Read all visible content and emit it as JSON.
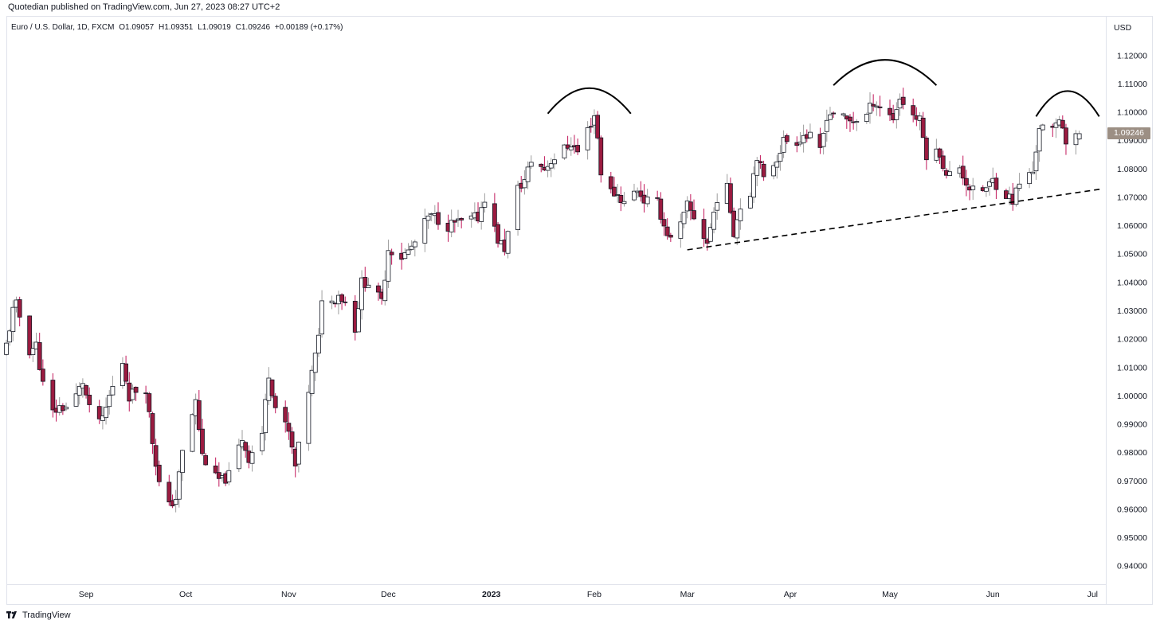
{
  "header": {
    "publisher_line": "Quotedian published on TradingView.com, Jun 27, 2023 08:27 UTC+2"
  },
  "symbol_bar": {
    "name": "Euro / U.S. Dollar, 1D, FXCM",
    "open": "O1.09057",
    "high": "H1.09351",
    "low": "L1.09019",
    "close": "C1.09246",
    "change": "+0.00189 (+0.17%)"
  },
  "axis": {
    "currency": "USD",
    "last_price_label": "1.09246"
  },
  "footer": {
    "brand": "TradingView"
  },
  "colors": {
    "up_body": "#ffffff",
    "up_border": "#131722",
    "down_body": "#9b1b40",
    "down_border": "#131722",
    "up_wick": "#9e9e9e",
    "down_wick": "#c2185b",
    "last_price_tag": "#9c8f84",
    "annotation": "#000000"
  },
  "chart_data": {
    "type": "candlestick",
    "symbol": "EURUSD",
    "interval": "1D",
    "x_range": [
      "2022-08-08",
      "2023-07-05"
    ],
    "ylim": [
      0.935,
      1.125
    ],
    "y_ticks": [
      "1.12000",
      "1.11000",
      "1.10000",
      "1.09000",
      "1.08000",
      "1.07000",
      "1.06000",
      "1.05000",
      "1.04000",
      "1.03000",
      "1.02000",
      "1.01000",
      "1.00000",
      "0.99000",
      "0.98000",
      "0.97000",
      "0.96000",
      "0.95000",
      "0.94000"
    ],
    "x_ticks": [
      {
        "date": "2022-09-01",
        "label": "Sep"
      },
      {
        "date": "2022-10-01",
        "label": "Oct"
      },
      {
        "date": "2022-11-01",
        "label": "Nov"
      },
      {
        "date": "2022-12-01",
        "label": "Dec"
      },
      {
        "date": "2023-01-01",
        "label": "2023",
        "bold": true
      },
      {
        "date": "2023-02-01",
        "label": "Feb"
      },
      {
        "date": "2023-03-01",
        "label": "Mar"
      },
      {
        "date": "2023-04-01",
        "label": "Apr"
      },
      {
        "date": "2023-05-01",
        "label": "May"
      },
      {
        "date": "2023-06-01",
        "label": "Jun"
      },
      {
        "date": "2023-07-01",
        "label": "Jul"
      }
    ],
    "close_path": [
      [
        "2022-08-08",
        1.018
      ],
      [
        "2022-08-10",
        1.03
      ],
      [
        "2022-08-11",
        1.032
      ],
      [
        "2022-08-15",
        1.016
      ],
      [
        "2022-08-17",
        1.018
      ],
      [
        "2022-08-19",
        1.004
      ],
      [
        "2022-08-22",
        0.994
      ],
      [
        "2022-08-24",
        0.996
      ],
      [
        "2022-08-26",
        0.996
      ],
      [
        "2022-08-29",
        1.0
      ],
      [
        "2022-08-31",
        1.005
      ],
      [
        "2022-09-02",
        0.995
      ],
      [
        "2022-09-06",
        0.991
      ],
      [
        "2022-09-08",
        1.0
      ],
      [
        "2022-09-12",
        1.012
      ],
      [
        "2022-09-14",
        1.0
      ],
      [
        "2022-09-16",
        1.002
      ],
      [
        "2022-09-19",
        1.003
      ],
      [
        "2022-09-21",
        0.984
      ],
      [
        "2022-09-23",
        0.969
      ],
      [
        "2022-09-26",
        0.961
      ],
      [
        "2022-09-28",
        0.964
      ],
      [
        "2022-09-30",
        0.98
      ],
      [
        "2022-10-04",
        0.998
      ],
      [
        "2022-10-06",
        0.979
      ],
      [
        "2022-10-10",
        0.971
      ],
      [
        "2022-10-12",
        0.97
      ],
      [
        "2022-10-14",
        0.972
      ],
      [
        "2022-10-18",
        0.985
      ],
      [
        "2022-10-20",
        0.978
      ],
      [
        "2022-10-24",
        0.987
      ],
      [
        "2022-10-26",
        1.008
      ],
      [
        "2022-10-28",
        0.996
      ],
      [
        "2022-11-01",
        0.987
      ],
      [
        "2022-11-03",
        0.975
      ],
      [
        "2022-11-07",
        1.002
      ],
      [
        "2022-11-10",
        1.02
      ],
      [
        "2022-11-11",
        1.035
      ],
      [
        "2022-11-14",
        1.033
      ],
      [
        "2022-11-16",
        1.036
      ],
      [
        "2022-11-18",
        1.033
      ],
      [
        "2022-11-21",
        1.024
      ],
      [
        "2022-11-23",
        1.04
      ],
      [
        "2022-11-25",
        1.04
      ],
      [
        "2022-11-29",
        1.033
      ],
      [
        "2022-12-01",
        1.052
      ],
      [
        "2022-12-05",
        1.049
      ],
      [
        "2022-12-07",
        1.051
      ],
      [
        "2022-12-09",
        1.054
      ],
      [
        "2022-12-13",
        1.063
      ],
      [
        "2022-12-15",
        1.063
      ],
      [
        "2022-12-19",
        1.06
      ],
      [
        "2022-12-21",
        1.061
      ],
      [
        "2022-12-23",
        1.061
      ],
      [
        "2022-12-28",
        1.063
      ],
      [
        "2022-12-30",
        1.07
      ],
      [
        "2023-01-03",
        1.055
      ],
      [
        "2023-01-05",
        1.052
      ],
      [
        "2023-01-09",
        1.073
      ],
      [
        "2023-01-11",
        1.076
      ],
      [
        "2023-01-13",
        1.083
      ],
      [
        "2023-01-17",
        1.08
      ],
      [
        "2023-01-19",
        1.083
      ],
      [
        "2023-01-23",
        1.087
      ],
      [
        "2023-01-25",
        1.089
      ],
      [
        "2023-01-27",
        1.086
      ],
      [
        "2023-02-01",
        1.099
      ],
      [
        "2023-02-02",
        1.091
      ],
      [
        "2023-02-03",
        1.079
      ],
      [
        "2023-02-06",
        1.072
      ],
      [
        "2023-02-08",
        1.071
      ],
      [
        "2023-02-10",
        1.068
      ],
      [
        "2023-02-14",
        1.073
      ],
      [
        "2023-02-16",
        1.069
      ],
      [
        "2023-02-20",
        1.068
      ],
      [
        "2023-02-22",
        1.06
      ],
      [
        "2023-02-24",
        1.055
      ],
      [
        "2023-02-27",
        1.06
      ],
      [
        "2023-03-01",
        1.067
      ],
      [
        "2023-03-03",
        1.063
      ],
      [
        "2023-03-07",
        1.054
      ],
      [
        "2023-03-10",
        1.07
      ],
      [
        "2023-03-13",
        1.073
      ],
      [
        "2023-03-15",
        1.058
      ],
      [
        "2023-03-17",
        1.067
      ],
      [
        "2023-03-20",
        1.072
      ],
      [
        "2023-03-22",
        1.085
      ],
      [
        "2023-03-24",
        1.076
      ],
      [
        "2023-03-28",
        1.084
      ],
      [
        "2023-03-30",
        1.09
      ],
      [
        "2023-04-03",
        1.09
      ],
      [
        "2023-04-05",
        1.092
      ],
      [
        "2023-04-07",
        1.091
      ],
      [
        "2023-04-10",
        1.086
      ],
      [
        "2023-04-12",
        1.099
      ],
      [
        "2023-04-14",
        1.1
      ],
      [
        "2023-04-18",
        1.097
      ],
      [
        "2023-04-20",
        1.097
      ],
      [
        "2023-04-24",
        1.099
      ],
      [
        "2023-04-26",
        1.104
      ],
      [
        "2023-04-28",
        1.102
      ],
      [
        "2023-05-02",
        1.098
      ],
      [
        "2023-05-04",
        1.105
      ],
      [
        "2023-05-08",
        1.099
      ],
      [
        "2023-05-10",
        1.097
      ],
      [
        "2023-05-12",
        1.085
      ],
      [
        "2023-05-16",
        1.086
      ],
      [
        "2023-05-18",
        1.077
      ],
      [
        "2023-05-22",
        1.081
      ],
      [
        "2023-05-24",
        1.075
      ],
      [
        "2023-05-26",
        1.072
      ],
      [
        "2023-05-30",
        1.073
      ],
      [
        "2023-06-01",
        1.076
      ],
      [
        "2023-06-05",
        1.071
      ],
      [
        "2023-06-07",
        1.069
      ],
      [
        "2023-06-09",
        1.075
      ],
      [
        "2023-06-13",
        1.079
      ],
      [
        "2023-06-15",
        1.095
      ],
      [
        "2023-06-19",
        1.093
      ],
      [
        "2023-06-21",
        1.098
      ],
      [
        "2023-06-22",
        1.096
      ],
      [
        "2023-06-23",
        1.089
      ],
      [
        "2023-06-26",
        1.091
      ],
      [
        "2023-06-27",
        1.09246
      ]
    ],
    "annotations": [
      {
        "type": "arc",
        "label": "",
        "from": "2023-01-18",
        "to": "2023-02-12",
        "peak": 1.1085
      },
      {
        "type": "arc",
        "label": "",
        "from": "2023-04-14",
        "to": "2023-05-15",
        "peak": 1.1185
      },
      {
        "type": "arc",
        "label": "",
        "from": "2023-06-14",
        "to": "2023-07-03",
        "peak": 1.1075
      },
      {
        "type": "dashed_trendline",
        "label": "",
        "from": [
          "2023-03-01",
          1.0515
        ],
        "to": [
          "2023-07-04",
          1.073
        ]
      }
    ],
    "grid": false,
    "title": "",
    "xlabel": "",
    "ylabel": "USD"
  }
}
